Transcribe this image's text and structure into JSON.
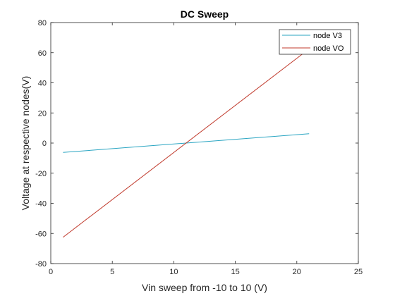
{
  "chart_data": {
    "type": "line",
    "title": "DC Sweep",
    "xlabel": "Vin sweep from -10 to 10 (V)",
    "ylabel": "Voltage at respective nodes(V)",
    "xlim": [
      0,
      25
    ],
    "ylim": [
      -80,
      80
    ],
    "xticks": [
      0,
      5,
      10,
      15,
      20,
      25
    ],
    "yticks": [
      -80,
      -60,
      -40,
      -20,
      0,
      20,
      40,
      60,
      80
    ],
    "grid": false,
    "legend_position": "top-right",
    "series": [
      {
        "name": "node V3",
        "color": "#2aa5c2",
        "x": [
          1,
          21
        ],
        "y": [
          -6.2,
          6.2
        ]
      },
      {
        "name": "node VO",
        "color": "#c0392b",
        "x": [
          1,
          21
        ],
        "y": [
          -62.5,
          62.5
        ]
      }
    ]
  }
}
